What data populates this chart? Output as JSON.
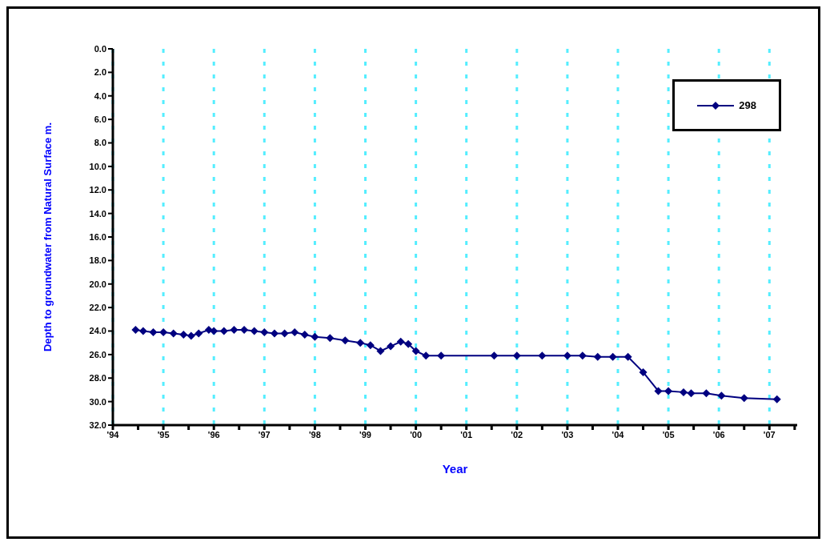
{
  "chart_data": {
    "type": "line",
    "xlabel": "Year",
    "ylabel": "Depth to groundwater from Natural Surface m.",
    "xlim": [
      1994,
      2007.55
    ],
    "xticks": [
      {
        "value": 1994,
        "label": "'94"
      },
      {
        "value": 1994.5,
        "label": null
      },
      {
        "value": 1995,
        "label": "'95"
      },
      {
        "value": 1995.5,
        "label": null
      },
      {
        "value": 1996,
        "label": "'96"
      },
      {
        "value": 1996.5,
        "label": null
      },
      {
        "value": 1997,
        "label": "'97"
      },
      {
        "value": 1997.5,
        "label": null
      },
      {
        "value": 1998,
        "label": "'98"
      },
      {
        "value": 1998.5,
        "label": null
      },
      {
        "value": 1999,
        "label": "'99"
      },
      {
        "value": 1999.5,
        "label": null
      },
      {
        "value": 2000,
        "label": "'00"
      },
      {
        "value": 2000.5,
        "label": null
      },
      {
        "value": 2001,
        "label": "'01"
      },
      {
        "value": 2001.5,
        "label": null
      },
      {
        "value": 2002,
        "label": "'02"
      },
      {
        "value": 2002.5,
        "label": null
      },
      {
        "value": 2003,
        "label": "'03"
      },
      {
        "value": 2003.5,
        "label": null
      },
      {
        "value": 2004,
        "label": "'04"
      },
      {
        "value": 2004.5,
        "label": null
      },
      {
        "value": 2005,
        "label": "'05"
      },
      {
        "value": 2005.5,
        "label": null
      },
      {
        "value": 2006,
        "label": "'06"
      },
      {
        "value": 2006.5,
        "label": null
      },
      {
        "value": 2007,
        "label": "'07"
      },
      {
        "value": 2007.5,
        "label": null
      }
    ],
    "ylim": [
      32,
      0
    ],
    "yticks": [
      {
        "value": 0,
        "label": "0.0"
      },
      {
        "value": 2,
        "label": "2.0"
      },
      {
        "value": 4,
        "label": "4.0"
      },
      {
        "value": 6,
        "label": "6.0"
      },
      {
        "value": 8,
        "label": "8.0"
      },
      {
        "value": 10,
        "label": "10.0"
      },
      {
        "value": 12,
        "label": "12.0"
      },
      {
        "value": 14,
        "label": "14.0"
      },
      {
        "value": 16,
        "label": "16.0"
      },
      {
        "value": 18,
        "label": "18.0"
      },
      {
        "value": 20,
        "label": "20.0"
      },
      {
        "value": 22,
        "label": "22.0"
      },
      {
        "value": 24,
        "label": "24.0"
      },
      {
        "value": 26,
        "label": "26.0"
      },
      {
        "value": 28,
        "label": "28.0"
      },
      {
        "value": 30,
        "label": "30.0"
      },
      {
        "value": 32,
        "label": "32.0"
      }
    ],
    "grid": "x",
    "legend": "top right",
    "marker": "diamond",
    "line_style": "solid",
    "series": [
      {
        "name": "298",
        "color": "#000080",
        "x": [
          1994.45,
          1994.6,
          1994.8,
          1995.0,
          1995.2,
          1995.4,
          1995.55,
          1995.7,
          1995.9,
          1996.0,
          1996.2,
          1996.4,
          1996.6,
          1996.8,
          1997.0,
          1997.2,
          1997.4,
          1997.6,
          1997.8,
          1998.0,
          1998.3,
          1998.6,
          1998.9,
          1999.1,
          1999.3,
          1999.5,
          1999.7,
          1999.85,
          2000.0,
          2000.2,
          2000.5,
          2001.55,
          2002.0,
          2002.5,
          2003.0,
          2003.3,
          2003.6,
          2003.9,
          2004.2,
          2004.5,
          2004.8,
          2005.0,
          2005.3,
          2005.45,
          2005.75,
          2006.05,
          2006.5,
          2007.15
        ],
        "values": [
          23.9,
          24.0,
          24.1,
          24.1,
          24.2,
          24.3,
          24.4,
          24.2,
          23.9,
          24.0,
          24.0,
          23.9,
          23.9,
          24.0,
          24.1,
          24.2,
          24.2,
          24.1,
          24.3,
          24.5,
          24.6,
          24.8,
          25.0,
          25.2,
          25.7,
          25.3,
          24.9,
          25.1,
          25.7,
          26.1,
          26.1,
          26.1,
          26.1,
          26.1,
          26.1,
          26.1,
          26.2,
          26.2,
          26.2,
          27.5,
          29.1,
          29.1,
          29.2,
          29.3,
          29.3,
          29.5,
          29.7,
          29.8
        ]
      }
    ]
  }
}
